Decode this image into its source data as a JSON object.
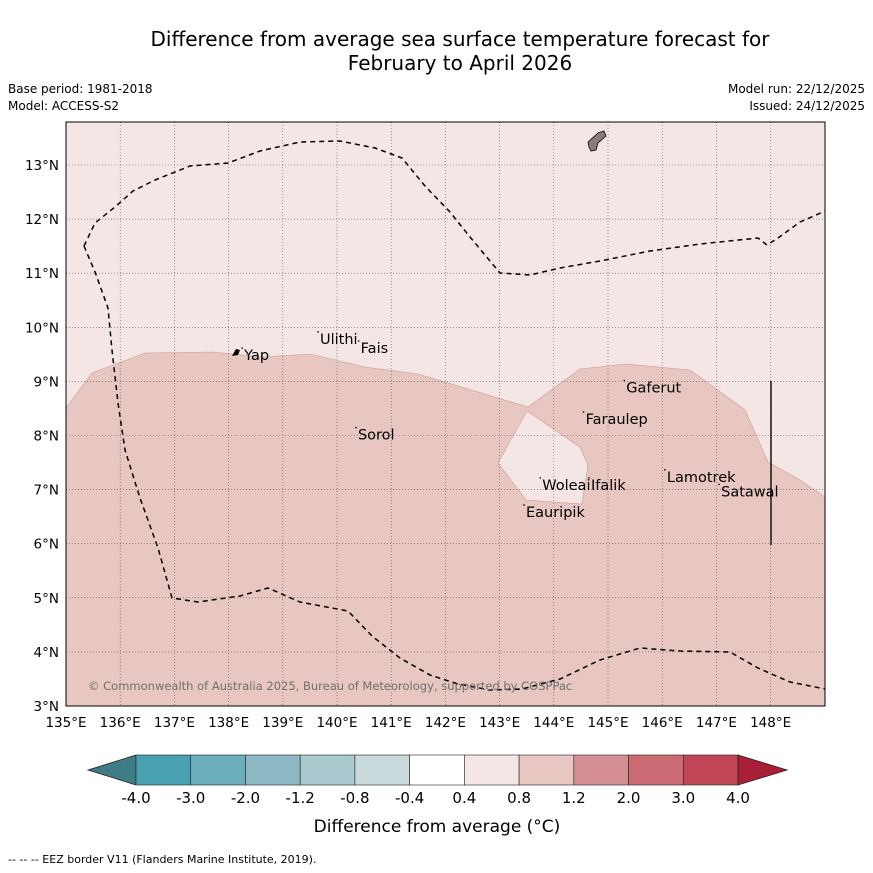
{
  "title_line1": "Difference from average sea surface temperature forecast for",
  "title_line2": "February to April 2026",
  "meta": {
    "base_period": "Base period: 1981-2018",
    "model": "Model: ACCESS-S2",
    "model_run": "Model run: 22/12/2025",
    "issued": "Issued: 24/12/2025"
  },
  "map": {
    "lon_labels": [
      "135°E",
      "136°E",
      "137°E",
      "138°E",
      "139°E",
      "140°E",
      "141°E",
      "142°E",
      "143°E",
      "144°E",
      "145°E",
      "146°E",
      "147°E",
      "148°E"
    ],
    "lat_labels": [
      "3°N",
      "4°N",
      "5°N",
      "6°N",
      "7°N",
      "8°N",
      "9°N",
      "10°N",
      "11°N",
      "12°N",
      "13°N"
    ],
    "places": [
      {
        "name": "Yap",
        "lon": 138.25,
        "lat": 9.45
      },
      {
        "name": "Ulithi",
        "lon": 139.65,
        "lat": 9.75
      },
      {
        "name": "Fais",
        "lon": 140.4,
        "lat": 9.58
      },
      {
        "name": "Gaferut",
        "lon": 145.3,
        "lat": 8.85
      },
      {
        "name": "Faraulep",
        "lon": 144.55,
        "lat": 8.27
      },
      {
        "name": "Sorol",
        "lon": 140.35,
        "lat": 7.98
      },
      {
        "name": "Woleai",
        "lon": 143.75,
        "lat": 7.05
      },
      {
        "name": "Ifalik",
        "lon": 144.65,
        "lat": 7.05
      },
      {
        "name": "Lamotrek",
        "lon": 146.05,
        "lat": 7.2
      },
      {
        "name": "Satawal",
        "lon": 147.05,
        "lat": 6.93
      },
      {
        "name": "Eauripik",
        "lon": 143.45,
        "lat": 6.55
      }
    ],
    "copyright": "© Commonwealth of Australia 2025, Bureau of Meteorology, supported by COSPPac"
  },
  "colorbar": {
    "labels": [
      "-4.0",
      "-3.0",
      "-2.0",
      "-1.2",
      "-0.8",
      "-0.4",
      "0.4",
      "0.8",
      "1.2",
      "2.0",
      "3.0",
      "4.0"
    ],
    "colors": [
      "#3d7b85",
      "#48a0b0",
      "#6caebb",
      "#8bb8c3",
      "#a9c9cf",
      "#c8d9dc",
      "#ffffff",
      "#f4e6e4",
      "#e8c6c1",
      "#d58f95",
      "#cb6a73",
      "#c04555",
      "#aa1f38"
    ],
    "label": "Difference from average (°C)"
  },
  "footer": "--  --  -- EEZ border V11 (Flanders Marine Institute, 2019)."
}
